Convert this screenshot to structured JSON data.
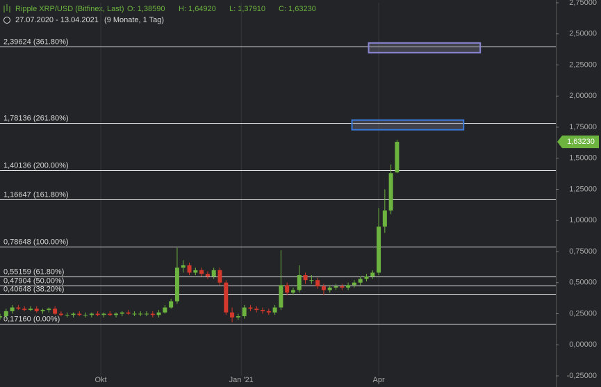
{
  "chart_data": {
    "type": "candlestick",
    "title": "Ripple XRP/USD (Bitfinex, Last)",
    "ohlc_text": [
      "O: 1,38590",
      "H: 1,64920",
      "L: 1,37910",
      "C: 1,63230"
    ],
    "date_range": "27.07.2020 - 13.04.2021",
    "period": "(9 Monate, 1 Tag)",
    "x": [
      0,
      4,
      8,
      12,
      16,
      20,
      24,
      28,
      32,
      36,
      40,
      44,
      48,
      52,
      56,
      60,
      64,
      68,
      72,
      76,
      80,
      84,
      88,
      92,
      96,
      100,
      104,
      108,
      112,
      116,
      120,
      124,
      128,
      132,
      136,
      140,
      144,
      148,
      152,
      156,
      160,
      164,
      168,
      172,
      176,
      180,
      184,
      188,
      192,
      196,
      200,
      204,
      208,
      212,
      216,
      220,
      224,
      228,
      232,
      236,
      240,
      244,
      248,
      252,
      256,
      260
    ],
    "open": [
      0.22,
      0.23,
      0.27,
      0.3,
      0.29,
      0.28,
      0.29,
      0.27,
      0.28,
      0.29,
      0.25,
      0.24,
      0.24,
      0.25,
      0.24,
      0.24,
      0.25,
      0.24,
      0.25,
      0.24,
      0.25,
      0.26,
      0.25,
      0.25,
      0.25,
      0.25,
      0.24,
      0.26,
      0.3,
      0.35,
      0.62,
      0.64,
      0.58,
      0.6,
      0.57,
      0.55,
      0.6,
      0.5,
      0.26,
      0.22,
      0.23,
      0.3,
      0.29,
      0.28,
      0.27,
      0.26,
      0.3,
      0.48,
      0.42,
      0.44,
      0.56,
      0.52,
      0.52,
      0.47,
      0.44,
      0.46,
      0.47,
      0.46,
      0.48,
      0.5,
      0.53,
      0.55,
      0.58,
      0.95,
      1.08,
      1.3859
    ],
    "high": [
      0.25,
      0.29,
      0.32,
      0.32,
      0.31,
      0.31,
      0.31,
      0.29,
      0.3,
      0.31,
      0.27,
      0.26,
      0.26,
      0.27,
      0.26,
      0.26,
      0.27,
      0.26,
      0.27,
      0.26,
      0.27,
      0.28,
      0.27,
      0.27,
      0.27,
      0.27,
      0.28,
      0.32,
      0.37,
      0.78,
      0.68,
      0.66,
      0.62,
      0.62,
      0.59,
      0.62,
      0.62,
      0.52,
      0.3,
      0.25,
      0.32,
      0.32,
      0.31,
      0.3,
      0.29,
      0.32,
      0.76,
      0.5,
      0.46,
      0.64,
      0.58,
      0.56,
      0.54,
      0.49,
      0.48,
      0.49,
      0.49,
      0.5,
      0.52,
      0.55,
      0.57,
      0.6,
      1.1,
      1.25,
      1.45,
      1.6492
    ],
    "low": [
      0.2,
      0.21,
      0.25,
      0.28,
      0.27,
      0.27,
      0.26,
      0.25,
      0.26,
      0.24,
      0.23,
      0.22,
      0.22,
      0.23,
      0.22,
      0.22,
      0.23,
      0.22,
      0.23,
      0.22,
      0.23,
      0.24,
      0.23,
      0.23,
      0.23,
      0.22,
      0.22,
      0.25,
      0.29,
      0.33,
      0.58,
      0.56,
      0.56,
      0.55,
      0.53,
      0.53,
      0.48,
      0.24,
      0.18,
      0.2,
      0.21,
      0.27,
      0.26,
      0.25,
      0.24,
      0.24,
      0.28,
      0.4,
      0.4,
      0.42,
      0.49,
      0.49,
      0.45,
      0.4,
      0.42,
      0.44,
      0.44,
      0.44,
      0.46,
      0.48,
      0.51,
      0.53,
      0.56,
      0.9,
      1.05,
      1.3791
    ],
    "close": [
      0.23,
      0.27,
      0.3,
      0.29,
      0.28,
      0.29,
      0.27,
      0.28,
      0.29,
      0.25,
      0.24,
      0.24,
      0.25,
      0.24,
      0.24,
      0.25,
      0.24,
      0.25,
      0.24,
      0.25,
      0.26,
      0.25,
      0.25,
      0.25,
      0.25,
      0.24,
      0.26,
      0.3,
      0.35,
      0.62,
      0.64,
      0.58,
      0.6,
      0.57,
      0.55,
      0.6,
      0.5,
      0.26,
      0.22,
      0.23,
      0.3,
      0.29,
      0.28,
      0.27,
      0.26,
      0.3,
      0.48,
      0.42,
      0.44,
      0.56,
      0.52,
      0.52,
      0.47,
      0.44,
      0.46,
      0.47,
      0.46,
      0.48,
      0.5,
      0.53,
      0.55,
      0.58,
      0.95,
      1.08,
      1.38,
      1.6323
    ],
    "up_color": "#6cb33f",
    "down_color": "#d0392b",
    "xlim": [
      0,
      364
    ],
    "xticks": [
      {
        "value": 66,
        "label": "Okt"
      },
      {
        "value": 158,
        "label": "Jan '21"
      },
      {
        "value": 248,
        "label": "Apr"
      }
    ],
    "ylim": [
      -0.25,
      2.75
    ],
    "yticks": [
      {
        "value": -0.25,
        "label": "-0,25000"
      },
      {
        "value": 0,
        "label": "0,00000"
      },
      {
        "value": 0.25,
        "label": "0,25000"
      },
      {
        "value": 0.5,
        "label": "0,50000"
      },
      {
        "value": 0.75,
        "label": "0,75000"
      },
      {
        "value": 1,
        "label": "1,00000"
      },
      {
        "value": 1.25,
        "label": "1,25000"
      },
      {
        "value": 1.5,
        "label": "1,50000"
      },
      {
        "value": 1.75,
        "label": "1,75000"
      },
      {
        "value": 2,
        "label": "2,00000"
      },
      {
        "value": 2.25,
        "label": "2,25000"
      },
      {
        "value": 2.5,
        "label": "2,50000"
      },
      {
        "value": 2.75,
        "label": "2,75000"
      }
    ],
    "levels": [
      {
        "value": 0.1716,
        "label": "0,17160 (0.00%)"
      },
      {
        "value": 0.40648,
        "label": "0,40648 (38.20%)"
      },
      {
        "value": 0.47904,
        "label": "0,47904 (50.00%)"
      },
      {
        "value": 0.55159,
        "label": "0,55159 (61.80%)"
      },
      {
        "value": 0.78648,
        "label": "0,78648 (100.00%)"
      },
      {
        "value": 1.16647,
        "label": "1,16647 (161.80%)"
      },
      {
        "value": 1.40136,
        "label": "1,40136 (200.00%)"
      },
      {
        "value": 1.78136,
        "label": "1,78136 (261.80%)"
      },
      {
        "value": 2.39624,
        "label": "2,39624 (361.80%)"
      }
    ],
    "zones": [
      {
        "x0": 230.5,
        "x1": 303.6,
        "low": 1.729,
        "high": 1.807,
        "color": "#3a78d8"
      },
      {
        "x0": 241.4,
        "x1": 314.5,
        "low": 2.349,
        "high": 2.427,
        "color": "#8a86d6"
      }
    ],
    "last_price": {
      "value": 1.6323,
      "label": "1,63230",
      "color": "#6cb33f"
    }
  }
}
